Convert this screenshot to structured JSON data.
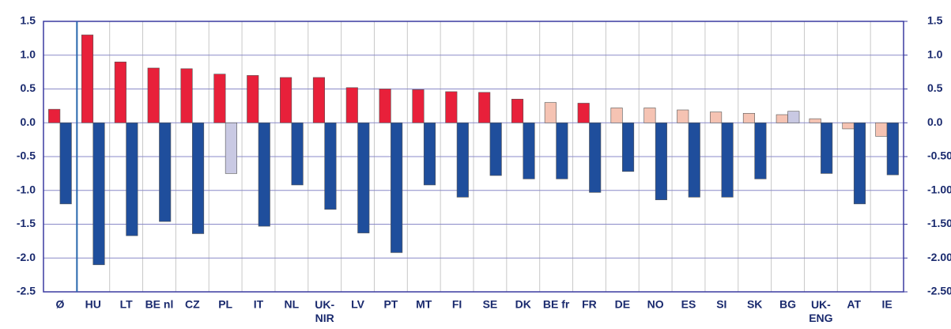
{
  "chart_data": {
    "type": "bar",
    "categories": [
      "Ø",
      "HU",
      "LT",
      "BE nl",
      "CZ",
      "PL",
      "IT",
      "NL",
      "UK-NIR",
      "LV",
      "PT",
      "MT",
      "FI",
      "SE",
      "DK",
      "BE fr",
      "FR",
      "DE",
      "NO",
      "ES",
      "SI",
      "SK",
      "BG",
      "UK-ENG",
      "AT",
      "IE"
    ],
    "series": [
      {
        "color": "#e8203a",
        "values": [
          0.2,
          1.3,
          0.9,
          0.81,
          0.8,
          0.72,
          0.7,
          0.67,
          0.67,
          0.52,
          0.5,
          0.49,
          0.46,
          0.45,
          0.35,
          0.3,
          0.29,
          0.22,
          0.22,
          0.19,
          0.16,
          0.14,
          0.12,
          0.06,
          -0.09,
          -0.2
        ],
        "colors": [
          "#e8203a",
          "#e8203a",
          "#e8203a",
          "#e8203a",
          "#e8203a",
          "#e8203a",
          "#e8203a",
          "#e8203a",
          "#e8203a",
          "#e8203a",
          "#e8203a",
          "#e8203a",
          "#e8203a",
          "#e8203a",
          "#e8203a",
          "#f5c3b3",
          "#e8203a",
          "#f5c3b3",
          "#f5c3b3",
          "#f5c3b3",
          "#f5c3b3",
          "#f5c3b3",
          "#f5c3b3",
          "#f5c3b3",
          "#f5c3b3",
          "#f5c3b3"
        ]
      },
      {
        "color": "#1f4e9c",
        "values": [
          -1.2,
          -2.1,
          -1.67,
          -1.46,
          -1.64,
          -0.75,
          -1.53,
          -0.92,
          -1.28,
          -1.63,
          -1.92,
          -0.92,
          -1.1,
          -0.78,
          -0.83,
          -0.83,
          -1.03,
          -0.72,
          -1.14,
          -1.1,
          -1.1,
          -0.83,
          0.17,
          -0.75,
          -1.2,
          -0.77
        ],
        "colors": [
          "#1f4e9c",
          "#1f4e9c",
          "#1f4e9c",
          "#1f4e9c",
          "#1f4e9c",
          "#c9c9e3",
          "#1f4e9c",
          "#1f4e9c",
          "#1f4e9c",
          "#1f4e9c",
          "#1f4e9c",
          "#1f4e9c",
          "#1f4e9c",
          "#1f4e9c",
          "#1f4e9c",
          "#1f4e9c",
          "#1f4e9c",
          "#1f4e9c",
          "#1f4e9c",
          "#1f4e9c",
          "#1f4e9c",
          "#1f4e9c",
          "#c9c9e3",
          "#1f4e9c",
          "#1f4e9c",
          "#1f4e9c"
        ]
      }
    ],
    "ylim": [
      -2.5,
      1.5
    ],
    "yticks": [
      1.5,
      {
        "value": 1,
        "label": "1.0"
      },
      0.5,
      {
        "value": 0,
        "label": "0.0"
      },
      -0.5,
      {
        "value": -1,
        "label": "-1.0"
      },
      -1.5,
      {
        "value": -2,
        "label": "-2.0"
      },
      -2.5
    ],
    "y2lim": [
      -2.5,
      1.5
    ],
    "y2ticks": [
      1.5,
      {
        "value": 1,
        "label": "1.0"
      },
      0.5,
      {
        "value": 0,
        "label": "0.0"
      },
      {
        "value": -0.5,
        "label": "-0.50"
      },
      {
        "value": -1,
        "label": "-1.00"
      },
      {
        "value": -1.5,
        "label": "-1.50"
      },
      {
        "value": -2,
        "label": "-2.00"
      },
      {
        "value": -2.5,
        "label": "-2.50"
      }
    ],
    "grid": true
  }
}
